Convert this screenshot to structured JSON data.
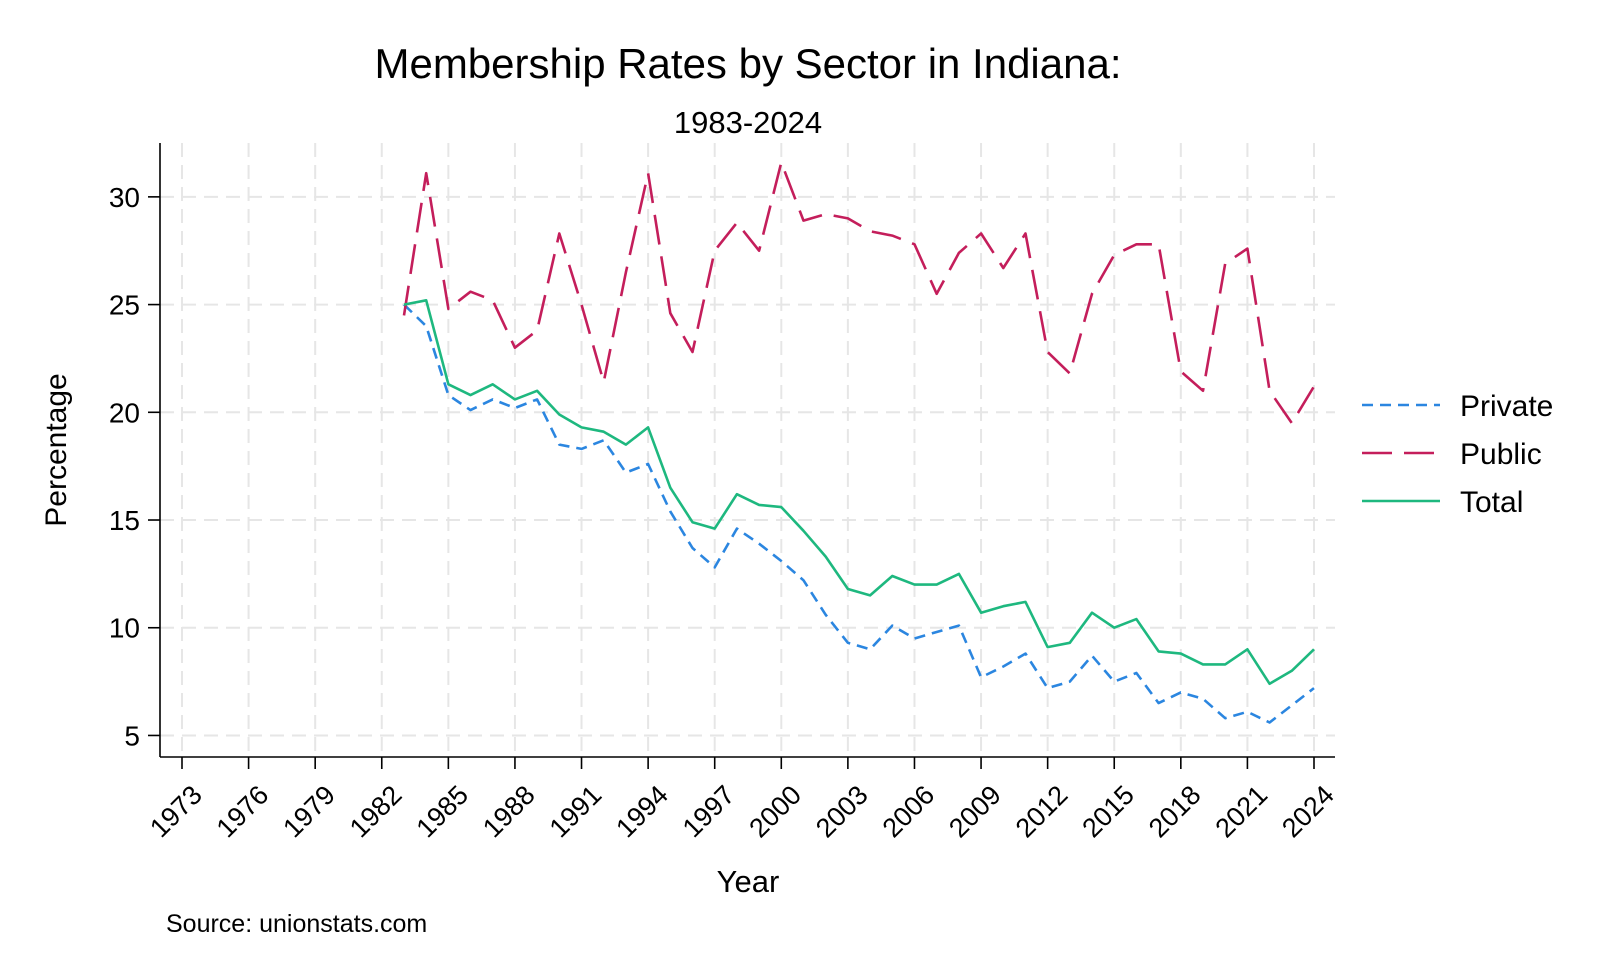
{
  "chart_data": {
    "type": "line",
    "title": "Membership Rates by Sector in Indiana:",
    "subtitle": "1983-2024",
    "xlabel": "Year",
    "ylabel": "Percentage",
    "source": "Source: unionstats.com",
    "xlim": [
      1973,
      2024
    ],
    "ylim": [
      4,
      32.5
    ],
    "x_ticks": [
      1973,
      1976,
      1979,
      1982,
      1985,
      1988,
      1991,
      1994,
      1997,
      2000,
      2003,
      2006,
      2009,
      2012,
      2015,
      2018,
      2021,
      2024
    ],
    "y_ticks": [
      5,
      10,
      15,
      20,
      25,
      30
    ],
    "grid": true,
    "legend_position": "right",
    "x": [
      1983,
      1984,
      1985,
      1986,
      1987,
      1988,
      1989,
      1990,
      1991,
      1992,
      1993,
      1994,
      1995,
      1996,
      1997,
      1998,
      1999,
      2000,
      2001,
      2002,
      2003,
      2004,
      2005,
      2006,
      2007,
      2008,
      2009,
      2010,
      2011,
      2012,
      2013,
      2014,
      2015,
      2016,
      2017,
      2018,
      2019,
      2020,
      2021,
      2022,
      2023,
      2024
    ],
    "series": [
      {
        "name": "Private",
        "color": "#2b86e0",
        "dash": "short-dash",
        "values": [
          25.0,
          24.0,
          20.8,
          20.1,
          20.6,
          20.2,
          20.6,
          18.5,
          18.3,
          18.7,
          17.2,
          17.6,
          15.4,
          13.7,
          12.8,
          14.6,
          13.9,
          13.1,
          12.2,
          10.6,
          9.3,
          9.0,
          10.1,
          9.5,
          9.8,
          10.1,
          7.7,
          8.2,
          8.8,
          7.2,
          7.5,
          8.7,
          7.5,
          7.9,
          6.5,
          7.0,
          6.7,
          5.8,
          6.1,
          5.6,
          6.4,
          7.2
        ]
      },
      {
        "name": "Public",
        "color": "#c41e5b",
        "dash": "long-dash",
        "values": [
          24.5,
          31.1,
          24.8,
          25.6,
          25.2,
          23.0,
          23.8,
          28.3,
          25.0,
          21.4,
          26.5,
          31.1,
          24.6,
          22.8,
          27.5,
          28.8,
          27.5,
          31.6,
          28.9,
          29.2,
          29.0,
          28.4,
          28.2,
          27.8,
          25.5,
          27.4,
          28.3,
          26.7,
          28.3,
          22.8,
          21.8,
          25.5,
          27.3,
          27.8,
          27.8,
          21.9,
          21.0,
          26.9,
          27.6,
          21.0,
          19.5,
          21.2
        ]
      },
      {
        "name": "Total",
        "color": "#1eb87f",
        "dash": "solid",
        "values": [
          25.0,
          25.2,
          21.3,
          20.8,
          21.3,
          20.6,
          21.0,
          19.9,
          19.3,
          19.1,
          18.5,
          19.3,
          16.5,
          14.9,
          14.6,
          16.2,
          15.7,
          15.6,
          14.5,
          13.3,
          11.8,
          11.5,
          12.4,
          12.0,
          12.0,
          12.5,
          10.7,
          11.0,
          11.2,
          9.1,
          9.3,
          10.7,
          10.0,
          10.4,
          8.9,
          8.8,
          8.3,
          8.3,
          9.0,
          7.4,
          8.0,
          9.0
        ]
      }
    ]
  }
}
